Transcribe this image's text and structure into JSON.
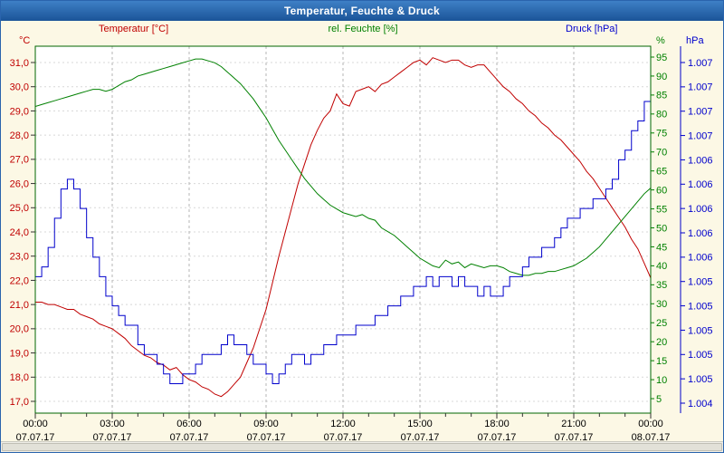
{
  "window": {
    "title": "Temperatur, Feuchte & Druck"
  },
  "legend": {
    "temperature": "Temperatur [°C]",
    "humidity": "rel. Feuchte [%]",
    "pressure": "Druck [hPa]"
  },
  "colors": {
    "temperature": "#c00000",
    "humidity": "#008000",
    "pressure": "#0000cc",
    "frame": "#006600",
    "grid_major": "#b4b4b4",
    "grid_minor": "#d8d8d8",
    "tick": "#333333",
    "axis_text": "#000000",
    "background": "#fcf8e5",
    "plot_background": "#ffffff",
    "titlebar_text": "#ffffff"
  },
  "chart_data": {
    "type": "line",
    "title": "Temperatur, Feuchte & Druck",
    "x_start": 0,
    "x_end": 24,
    "interval_hours": 0.25,
    "grid": true,
    "x_axis": {
      "tick_hours": [
        0,
        3,
        6,
        9,
        12,
        15,
        18,
        21,
        24
      ],
      "tick_labels": [
        "00:00",
        "03:00",
        "06:00",
        "09:00",
        "12:00",
        "15:00",
        "18:00",
        "21:00",
        "00:00"
      ],
      "date_labels": [
        "07.07.17",
        "07.07.17",
        "07.07.17",
        "07.07.17",
        "07.07.17",
        "07.07.17",
        "07.07.17",
        "07.07.17",
        "08.07.17"
      ],
      "minor_tick_step_hours": 1
    },
    "axes": {
      "temperature": {
        "unit": "°C",
        "top_value": 31,
        "bottom_value": 17,
        "tick_labels": [
          "31,0",
          "30,0",
          "29,0",
          "28,0",
          "27,0",
          "26,0",
          "25,0",
          "24,0",
          "23,0",
          "22,0",
          "21,0",
          "20,0",
          "19,0",
          "18,0",
          "17,0"
        ]
      },
      "humidity": {
        "unit": "%",
        "top_value": 95,
        "bottom_value": 5,
        "tick_labels": [
          "95",
          "90",
          "85",
          "80",
          "75",
          "70",
          "65",
          "60",
          "55",
          "50",
          "45",
          "40",
          "35",
          "30",
          "25",
          "20",
          "15",
          "10",
          "5"
        ]
      },
      "pressure": {
        "unit": "hPa",
        "top_value": 1007.5,
        "bottom_value": 1004.0,
        "tick_labels": [
          "1.007",
          "1.007",
          "1.007",
          "1.007",
          "1.006",
          "1.006",
          "1.006",
          "1.006",
          "1.006",
          "1.005",
          "1.005",
          "1.005",
          "1.005",
          "1.005",
          "1.004"
        ]
      }
    },
    "series": [
      {
        "key": "temperature",
        "name": "Temperatur [°C]",
        "step": false,
        "values": [
          21.1,
          21.1,
          21.0,
          21.0,
          20.9,
          20.8,
          20.8,
          20.6,
          20.5,
          20.4,
          20.2,
          20.1,
          20.0,
          19.8,
          19.6,
          19.3,
          19.1,
          18.9,
          18.8,
          18.6,
          18.5,
          18.3,
          18.4,
          18.1,
          17.9,
          17.8,
          17.6,
          17.5,
          17.3,
          17.2,
          17.4,
          17.7,
          18.0,
          18.6,
          19.2,
          20.0,
          20.8,
          21.9,
          23.0,
          24.0,
          25.0,
          26.0,
          26.8,
          27.6,
          28.2,
          28.7,
          29.0,
          29.7,
          29.3,
          29.2,
          29.8,
          29.9,
          30.0,
          29.8,
          30.1,
          30.2,
          30.4,
          30.6,
          30.8,
          31.0,
          31.1,
          30.9,
          31.2,
          31.1,
          31.0,
          31.1,
          31.1,
          30.9,
          30.8,
          30.9,
          30.9,
          30.6,
          30.3,
          30.0,
          29.8,
          29.5,
          29.3,
          29.0,
          28.8,
          28.5,
          28.3,
          28.0,
          27.8,
          27.5,
          27.2,
          26.9,
          26.5,
          26.2,
          25.8,
          25.4,
          25.0,
          24.6,
          24.2,
          23.7,
          23.3,
          22.7,
          22.1
        ]
      },
      {
        "key": "humidity",
        "name": "rel. Feuchte [%]",
        "step": false,
        "values": [
          82,
          82.5,
          83,
          83.5,
          84,
          84.5,
          85,
          85.5,
          86,
          86.5,
          86.5,
          86,
          86.5,
          87.5,
          88.5,
          89,
          90,
          90.5,
          91,
          91.5,
          92,
          92.5,
          93,
          93.5,
          94,
          94.5,
          94.5,
          94,
          93.5,
          92.5,
          91,
          89.5,
          88,
          86,
          84,
          81.5,
          79,
          76,
          73,
          70.5,
          68,
          65.5,
          63,
          61,
          59,
          57.5,
          56,
          55,
          54,
          53.5,
          53,
          53.5,
          52.5,
          52,
          50,
          49,
          48,
          46.5,
          45,
          43.5,
          42,
          41,
          40,
          39.5,
          41.5,
          40.5,
          41,
          39.5,
          40.5,
          40,
          39.5,
          40,
          40,
          39.5,
          38.5,
          38,
          37.5,
          37.5,
          38,
          38,
          38.5,
          38.5,
          39,
          39.5,
          40,
          41,
          42,
          43.5,
          45,
          47,
          49,
          51,
          53,
          55,
          57,
          59,
          60.5
        ]
      },
      {
        "key": "pressure",
        "name": "Druck [hPa]",
        "step": true,
        "values": [
          1005.3,
          1005.4,
          1005.6,
          1005.9,
          1006.2,
          1006.3,
          1006.2,
          1006.0,
          1005.7,
          1005.5,
          1005.3,
          1005.1,
          1005.0,
          1004.9,
          1004.8,
          1004.8,
          1004.6,
          1004.5,
          1004.5,
          1004.4,
          1004.3,
          1004.2,
          1004.2,
          1004.3,
          1004.3,
          1004.4,
          1004.5,
          1004.5,
          1004.5,
          1004.6,
          1004.7,
          1004.6,
          1004.6,
          1004.5,
          1004.4,
          1004.4,
          1004.3,
          1004.2,
          1004.3,
          1004.4,
          1004.5,
          1004.5,
          1004.4,
          1004.5,
          1004.5,
          1004.6,
          1004.6,
          1004.7,
          1004.7,
          1004.7,
          1004.8,
          1004.8,
          1004.8,
          1004.9,
          1004.9,
          1005.0,
          1005.0,
          1005.1,
          1005.1,
          1005.2,
          1005.2,
          1005.3,
          1005.2,
          1005.3,
          1005.3,
          1005.2,
          1005.3,
          1005.2,
          1005.2,
          1005.1,
          1005.2,
          1005.1,
          1005.1,
          1005.2,
          1005.3,
          1005.3,
          1005.4,
          1005.5,
          1005.5,
          1005.6,
          1005.6,
          1005.7,
          1005.8,
          1005.9,
          1005.9,
          1006.0,
          1006.0,
          1006.1,
          1006.1,
          1006.2,
          1006.3,
          1006.5,
          1006.6,
          1006.8,
          1006.9,
          1007.1,
          1007.4
        ]
      }
    ]
  }
}
